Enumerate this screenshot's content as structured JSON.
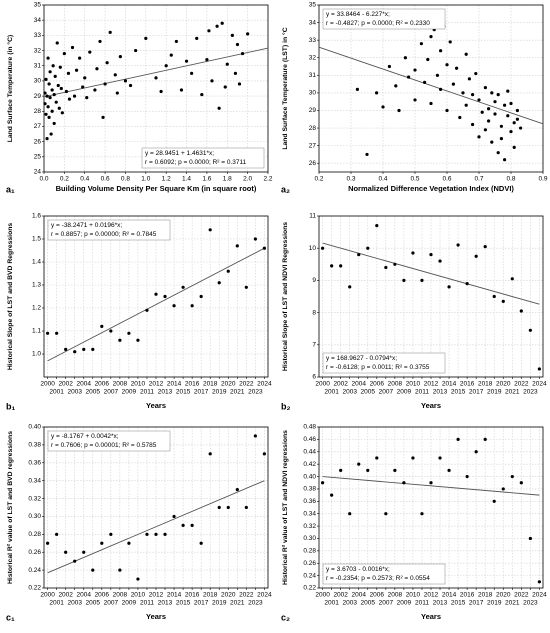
{
  "chart_data": [
    {
      "type": "scatter",
      "tag": "a₁",
      "xlabel": "Building Volume Density Per Square Km (in square root)",
      "ylabel": "Land Surface Temperature (in °C)",
      "x": [
        0.01,
        0.01,
        0.02,
        0.02,
        0.03,
        0.03,
        0.04,
        0.04,
        0.05,
        0.05,
        0.06,
        0.06,
        0.07,
        0.08,
        0.08,
        0.09,
        0.1,
        0.1,
        0.11,
        0.12,
        0.13,
        0.14,
        0.15,
        0.16,
        0.17,
        0.18,
        0.2,
        0.22,
        0.24,
        0.25,
        0.28,
        0.3,
        0.32,
        0.35,
        0.38,
        0.4,
        0.42,
        0.45,
        0.5,
        0.52,
        0.55,
        0.58,
        0.6,
        0.62,
        0.65,
        0.7,
        0.72,
        0.75,
        0.8,
        0.85,
        0.9,
        1.0,
        1.1,
        1.15,
        1.2,
        1.25,
        1.3,
        1.35,
        1.4,
        1.45,
        1.5,
        1.55,
        1.6,
        1.62,
        1.65,
        1.7,
        1.72,
        1.75,
        1.78,
        1.8,
        1.85,
        1.88,
        1.9,
        1.92,
        1.95,
        2.0
      ],
      "values": [
        28.5,
        29.2,
        27.8,
        30.1,
        26.2,
        29.0,
        28.3,
        31.5,
        27.6,
        29.8,
        28.9,
        30.6,
        26.5,
        29.4,
        28.0,
        31.0,
        29.1,
        27.2,
        30.3,
        28.6,
        32.5,
        29.7,
        28.2,
        30.9,
        29.5,
        27.9,
        31.8,
        29.3,
        30.5,
        28.8,
        32.2,
        29.0,
        30.7,
        31.5,
        29.6,
        30.2,
        28.9,
        31.9,
        29.4,
        30.8,
        32.6,
        27.6,
        29.8,
        31.2,
        33.2,
        30.4,
        29.2,
        31.6,
        30.0,
        29.7,
        32.0,
        32.8,
        30.2,
        29.3,
        31.0,
        31.7,
        32.6,
        29.4,
        31.3,
        30.5,
        32.8,
        29.1,
        31.4,
        33.3,
        30.0,
        33.6,
        28.2,
        33.8,
        29.6,
        31.1,
        33.0,
        30.5,
        32.4,
        29.8,
        31.8,
        33.1
      ],
      "trend": {
        "x": [
          0,
          2.2
        ],
        "y": [
          28.95,
          32.16
        ]
      },
      "xlim": [
        0,
        2.2
      ],
      "xticks": [
        {
          "value": 0,
          "label": "0.0"
        },
        0.2,
        0.4,
        0.6,
        0.8,
        {
          "value": 1,
          "label": "1.0"
        },
        1.2,
        1.4,
        1.6,
        1.8,
        {
          "value": 2,
          "label": "2.0"
        },
        2.2
      ],
      "ylim": [
        24,
        35
      ],
      "yticks": [
        24,
        25,
        26,
        27,
        28,
        29,
        30,
        31,
        32,
        33,
        34,
        35
      ],
      "annotations": [
        "y = 28.9451 + 1.4631*x;",
        "r = 0.6092; p = 0.0000; R² = 0.3711"
      ],
      "annotation_corner": "bottom-right",
      "color": "#000000",
      "grid": true
    },
    {
      "type": "scatter",
      "tag": "a₂",
      "xlabel": "Normalized Difference Vegetation Index (NDVI)",
      "ylabel": "Land Surface Temperature (LST) in °C",
      "x": [
        0.32,
        0.35,
        0.38,
        0.4,
        0.42,
        0.44,
        0.45,
        0.47,
        0.48,
        0.5,
        0.5,
        0.52,
        0.53,
        0.54,
        0.55,
        0.55,
        0.56,
        0.57,
        0.58,
        0.58,
        0.59,
        0.6,
        0.6,
        0.61,
        0.62,
        0.63,
        0.64,
        0.65,
        0.66,
        0.66,
        0.67,
        0.68,
        0.68,
        0.69,
        0.7,
        0.7,
        0.71,
        0.72,
        0.72,
        0.73,
        0.73,
        0.74,
        0.74,
        0.75,
        0.75,
        0.76,
        0.76,
        0.77,
        0.77,
        0.78,
        0.78,
        0.79,
        0.79,
        0.8,
        0.8,
        0.81,
        0.81,
        0.82,
        0.82,
        0.83
      ],
      "values": [
        30.2,
        26.5,
        30.0,
        29.2,
        31.5,
        30.4,
        29.0,
        32.0,
        30.9,
        31.3,
        29.6,
        32.8,
        30.6,
        31.9,
        33.2,
        29.4,
        33.6,
        31.0,
        32.4,
        30.2,
        33.8,
        31.6,
        29.0,
        32.9,
        30.5,
        31.4,
        28.6,
        30.0,
        32.2,
        29.3,
        30.8,
        28.2,
        29.9,
        31.1,
        27.5,
        29.6,
        28.9,
        30.3,
        27.9,
        29.1,
        28.4,
        30.0,
        27.2,
        29.5,
        28.8,
        26.6,
        29.9,
        28.1,
        27.4,
        29.3,
        26.2,
        28.7,
        30.1,
        27.8,
        29.4,
        28.3,
        26.9,
        29.0,
        28.5,
        28.0
      ],
      "trend": {
        "x": [
          0.2,
          0.9
        ],
        "y": [
          32.6,
          28.24
        ]
      },
      "xlim": [
        0.2,
        0.9
      ],
      "xticks": [
        0.2,
        0.3,
        0.4,
        0.5,
        0.6,
        0.7,
        0.8,
        0.9
      ],
      "ylim": [
        25.5,
        35
      ],
      "yticks": [
        26,
        27,
        28,
        29,
        30,
        31,
        32,
        33,
        34,
        35
      ],
      "annotations": [
        "y = 33.8464 - 6.227*x;",
        "r = -0.4827; p = 0.0000; R² = 0.2330"
      ],
      "annotation_corner": "top-left",
      "color": "#000000",
      "grid": true
    },
    {
      "type": "scatter",
      "tag": "b₁",
      "xlabel": "Years",
      "ylabel": "Historical Slope of LST and BVD Regressions",
      "x": [
        2000,
        2001,
        2002,
        2003,
        2004,
        2005,
        2006,
        2007,
        2008,
        2009,
        2010,
        2011,
        2012,
        2013,
        2014,
        2015,
        2016,
        2017,
        2018,
        2019,
        2020,
        2021,
        2022,
        2023,
        2024
      ],
      "values": [
        1.09,
        1.09,
        1.02,
        1.01,
        1.02,
        1.02,
        1.12,
        1.1,
        1.06,
        1.09,
        1.06,
        1.19,
        1.26,
        1.25,
        1.21,
        1.29,
        1.21,
        1.25,
        1.54,
        1.31,
        1.36,
        1.47,
        1.29,
        1.5,
        1.46
      ],
      "trend": {
        "x": [
          2000,
          2024
        ],
        "y": [
          0.97,
          1.46
        ]
      },
      "xlim": [
        1999.6,
        2024.4
      ],
      "xticks": [
        2000,
        2001,
        2002,
        2003,
        2004,
        2005,
        2006,
        2007,
        2008,
        2009,
        2010,
        2011,
        2012,
        2013,
        2014,
        2015,
        2016,
        2017,
        2018,
        2019,
        2020,
        2021,
        2022,
        2023,
        2024
      ],
      "ylim": [
        0.9,
        1.6
      ],
      "yticks": [
        {
          "value": 1,
          "label": "1.0"
        },
        1.1,
        1.2,
        1.3,
        1.4,
        1.5,
        1.6
      ],
      "annotations": [
        "y = -38.2471 + 0.0196*x;",
        "r = 0.8857; p = 0.00000; R² = 0.7845"
      ],
      "annotation_corner": "top-left",
      "color": "#000000",
      "grid": true
    },
    {
      "type": "scatter",
      "tag": "b₂",
      "xlabel": "Years",
      "ylabel": "Historical Slope of LST and NDVI Regressions",
      "x": [
        2000,
        2001,
        2002,
        2003,
        2004,
        2005,
        2006,
        2007,
        2008,
        2009,
        2010,
        2011,
        2012,
        2013,
        2014,
        2015,
        2016,
        2017,
        2018,
        2019,
        2020,
        2021,
        2022,
        2023,
        2024
      ],
      "values": [
        10.0,
        9.45,
        9.45,
        8.8,
        9.8,
        10.0,
        10.7,
        9.4,
        9.5,
        9.0,
        9.85,
        9.0,
        9.8,
        9.6,
        8.8,
        10.1,
        8.9,
        9.75,
        10.05,
        8.5,
        8.35,
        9.05,
        8.05,
        7.45,
        6.25
      ],
      "trend": {
        "x": [
          2000,
          2024
        ],
        "y": [
          10.16,
          8.26
        ]
      },
      "xlim": [
        1999.6,
        2024.4
      ],
      "xticks": [
        2000,
        2001,
        2002,
        2003,
        2004,
        2005,
        2006,
        2007,
        2008,
        2009,
        2010,
        2011,
        2012,
        2013,
        2014,
        2015,
        2016,
        2017,
        2018,
        2019,
        2020,
        2021,
        2022,
        2023,
        2024
      ],
      "ylim": [
        6,
        11
      ],
      "yticks": [
        6,
        7,
        8,
        9,
        10,
        11
      ],
      "annotations": [
        "y = 168.9627 - 0.0794*x;",
        "r = -0.6128; p = 0.0011; R² = 0.3755"
      ],
      "annotation_corner": "bottom-left",
      "color": "#000000",
      "grid": true
    },
    {
      "type": "scatter",
      "tag": "c₁",
      "xlabel": "Years",
      "ylabel": "Historical R² value of LST and BVD regressions",
      "x": [
        2000,
        2001,
        2002,
        2003,
        2004,
        2005,
        2006,
        2007,
        2008,
        2009,
        2010,
        2011,
        2012,
        2013,
        2014,
        2015,
        2016,
        2017,
        2018,
        2019,
        2020,
        2021,
        2022,
        2023,
        2024
      ],
      "values": [
        0.27,
        0.28,
        0.26,
        0.25,
        0.26,
        0.24,
        0.27,
        0.28,
        0.24,
        0.27,
        0.23,
        0.28,
        0.28,
        0.28,
        0.3,
        0.29,
        0.29,
        0.27,
        0.37,
        0.31,
        0.31,
        0.33,
        0.31,
        0.39,
        0.37
      ],
      "trend": {
        "x": [
          2000,
          2024
        ],
        "y": [
          0.237,
          0.34
        ]
      },
      "xlim": [
        1999.6,
        2024.4
      ],
      "xticks": [
        2000,
        2001,
        2002,
        2003,
        2004,
        2005,
        2006,
        2007,
        2008,
        2009,
        2010,
        2011,
        2012,
        2013,
        2014,
        2015,
        2016,
        2017,
        2018,
        2019,
        2020,
        2021,
        2022,
        2023,
        2024
      ],
      "ylim": [
        0.22,
        0.4
      ],
      "yticks": [
        0.22,
        0.24,
        0.26,
        0.28,
        {
          "value": 0.3,
          "label": "0.30"
        },
        0.32,
        0.34,
        0.36,
        0.38,
        {
          "value": 0.4,
          "label": "0.40"
        }
      ],
      "annotations": [
        "y = -8.1767 + 0.0042*x;",
        "r = 0.7606; p = 0.00001; R² = 0.5785"
      ],
      "annotation_corner": "top-left",
      "color": "#000000",
      "grid": true
    },
    {
      "type": "scatter",
      "tag": "c₂",
      "xlabel": "Years",
      "ylabel": "Historical R² value of LST and NDVI regressions",
      "x": [
        2000,
        2001,
        2002,
        2003,
        2004,
        2005,
        2006,
        2007,
        2008,
        2009,
        2010,
        2011,
        2012,
        2013,
        2014,
        2015,
        2016,
        2017,
        2018,
        2019,
        2020,
        2021,
        2022,
        2023,
        2024
      ],
      "values": [
        0.39,
        0.37,
        0.41,
        0.34,
        0.42,
        0.41,
        0.43,
        0.34,
        0.41,
        0.39,
        0.43,
        0.34,
        0.39,
        0.43,
        0.41,
        0.46,
        0.4,
        0.44,
        0.46,
        0.36,
        0.38,
        0.4,
        0.39,
        0.3,
        0.23
      ],
      "trend": {
        "x": [
          2000,
          2024
        ],
        "y": [
          0.4,
          0.37
        ]
      },
      "xlim": [
        1999.6,
        2024.4
      ],
      "xticks": [
        2000,
        2001,
        2002,
        2003,
        2004,
        2005,
        2006,
        2007,
        2008,
        2009,
        2010,
        2011,
        2012,
        2013,
        2014,
        2015,
        2016,
        2017,
        2018,
        2019,
        2020,
        2021,
        2022,
        2023,
        2024
      ],
      "ylim": [
        0.22,
        0.48
      ],
      "yticks": [
        0.22,
        0.24,
        0.26,
        0.28,
        {
          "value": 0.3,
          "label": "0.30"
        },
        0.32,
        0.34,
        0.36,
        0.38,
        {
          "value": 0.4,
          "label": "0.40"
        },
        0.42,
        0.44,
        0.46,
        0.48
      ],
      "annotations": [
        "y = 3.6703 - 0.0016*x;",
        "r = -0.2354; p = 0.2573; R² = 0.0554"
      ],
      "annotation_corner": "bottom-left",
      "color": "#000000",
      "grid": true
    }
  ]
}
